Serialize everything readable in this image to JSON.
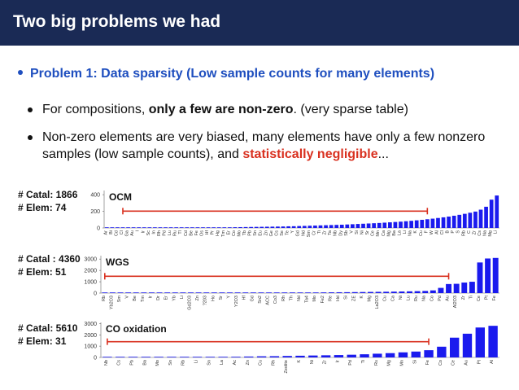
{
  "header": {
    "title": "Two big problems we had"
  },
  "problem": {
    "text": "Problem 1: Data sparsity (Low sample counts for many elements)"
  },
  "bullets": {
    "b1_pre": "For compositions, ",
    "b1_bold": "only a few are non-zero",
    "b1_post": ". (very sparse table)",
    "b2_pre": "Non-zero elements are very biased, many elements have only a few nonzero samples (low sample counts), and ",
    "b2_red": "statistically negligible",
    "b2_post": "..."
  },
  "colors": {
    "header_bg": "#1a2a55",
    "accent": "#1f4fbf",
    "bar": "#1a1aee",
    "arrow": "#d9301f"
  },
  "chart_data": [
    {
      "type": "bar",
      "title": "OCM",
      "info": {
        "catal": "# Catal: 1866",
        "elem": "# Elem: 74"
      },
      "ylim": [
        0,
        450
      ],
      "yticks": [
        0,
        200,
        400
      ],
      "categories": [
        "Ar",
        "Bi",
        "Cd",
        "Cl",
        "Ga",
        "Au",
        "I",
        "Ir",
        "Sc",
        "In",
        "Rh",
        "Pd",
        "Lu",
        "Ru",
        "Tl",
        "Cd",
        "Be",
        "Fe",
        "Os",
        "Hf",
        "Pr",
        "Hg",
        "Tm",
        "Er",
        "Co",
        "Mo",
        "Tb",
        "Pb",
        "Sn",
        "Eu",
        "Zn",
        "Ge",
        "Cs",
        "Se",
        "Te",
        "Y",
        "Gd",
        "Nd",
        "Sm",
        "Cr",
        "Ti",
        "Zr",
        "Ta",
        "Nb",
        "Dy",
        "Sb",
        "V",
        "Si",
        "Ni",
        "Sr",
        "Ce",
        "Mn",
        "Ca",
        "Mg",
        "Ba",
        "La",
        "Li",
        "Na",
        "K",
        "Cu",
        "F",
        "W",
        "Al",
        "Cl",
        "B",
        "P",
        "S",
        "Rb",
        "C",
        "Zr",
        "Cs",
        "Na",
        "Mg",
        "Li"
      ],
      "values": [
        1,
        1,
        1,
        1,
        1,
        2,
        2,
        2,
        2,
        3,
        3,
        3,
        3,
        4,
        4,
        4,
        5,
        5,
        6,
        6,
        7,
        7,
        8,
        8,
        9,
        10,
        11,
        12,
        13,
        14,
        15,
        16,
        17,
        18,
        20,
        21,
        23,
        25,
        27,
        29,
        31,
        33,
        35,
        37,
        39,
        42,
        45,
        48,
        51,
        54,
        57,
        60,
        64,
        68,
        72,
        76,
        81,
        86,
        92,
        98,
        105,
        112,
        120,
        128,
        137,
        147,
        158,
        170,
        183,
        197,
        220,
        255,
        340,
        390
      ],
      "arrow": [
        3,
        60
      ]
    },
    {
      "type": "bar",
      "title": "WGS",
      "info": {
        "catal": "# Catal : 4360",
        "elem": "# Elem: 51"
      },
      "ylim": [
        0,
        3300
      ],
      "yticks": [
        0,
        1000,
        2000,
        3000
      ],
      "categories": [
        "Rb",
        "Yb2O3",
        "Sm",
        "V",
        "Be",
        "Tm",
        "Ir",
        "Dr",
        "Er",
        "Yb",
        "Li",
        "Gd2O3",
        "Zn",
        "?203",
        "Ho",
        "Sr",
        "Y",
        "Y2O3",
        "Hf",
        "Gd",
        "Sn2",
        "ACC",
        "Co3",
        "Rh",
        "Th",
        "Nd",
        "Ta4",
        "Mo",
        "Fe2",
        "Re",
        "Hd",
        "Si",
        "ZE",
        "K",
        "Mg",
        "La2O3",
        "Cu",
        "Ca",
        "Ni",
        "Lu",
        "Ru",
        "Na",
        "Co",
        "Pd",
        "Au",
        "Al2O3",
        "Zr",
        "Ti",
        "Ce",
        "Pt",
        "Fe"
      ],
      "values": [
        8,
        8,
        9,
        10,
        10,
        11,
        12,
        13,
        14,
        15,
        16,
        17,
        18,
        19,
        20,
        22,
        24,
        26,
        28,
        30,
        33,
        36,
        39,
        42,
        46,
        50,
        54,
        58,
        63,
        68,
        74,
        80,
        87,
        94,
        102,
        110,
        120,
        130,
        142,
        155,
        170,
        190,
        240,
        460,
        800,
        820,
        930,
        1000,
        2700,
        3050,
        3100
      ],
      "arrow": [
        0,
        44
      ]
    },
    {
      "type": "bar",
      "title": "CO oxidation",
      "info": {
        "catal": "# Catal: 5610",
        "elem": "# Elem: 31"
      },
      "ylim": [
        0,
        3100
      ],
      "yticks": [
        0,
        1000,
        2000,
        3000
      ],
      "categories": [
        "Nb",
        "Cs",
        "Pb",
        "Ba",
        "Mo",
        "Sn",
        "Rb",
        "Li",
        "Sn",
        "La",
        "Ac",
        "Zn",
        "Cu",
        "Rh",
        "Zeolite",
        "K",
        "Ni",
        "Zr",
        "Ir",
        "Pd",
        "Ti",
        "Ru",
        "Mg",
        "Mn",
        "Si",
        "Fe",
        "Co",
        "Ce",
        "Au",
        "Pt",
        "Al"
      ],
      "values": [
        12,
        13,
        15,
        18,
        20,
        23,
        26,
        30,
        34,
        40,
        60,
        80,
        100,
        110,
        130,
        150,
        170,
        190,
        210,
        240,
        280,
        330,
        380,
        450,
        520,
        640,
        950,
        1750,
        2100,
        2650,
        2800
      ],
      "arrow": [
        0,
        25
      ]
    }
  ]
}
